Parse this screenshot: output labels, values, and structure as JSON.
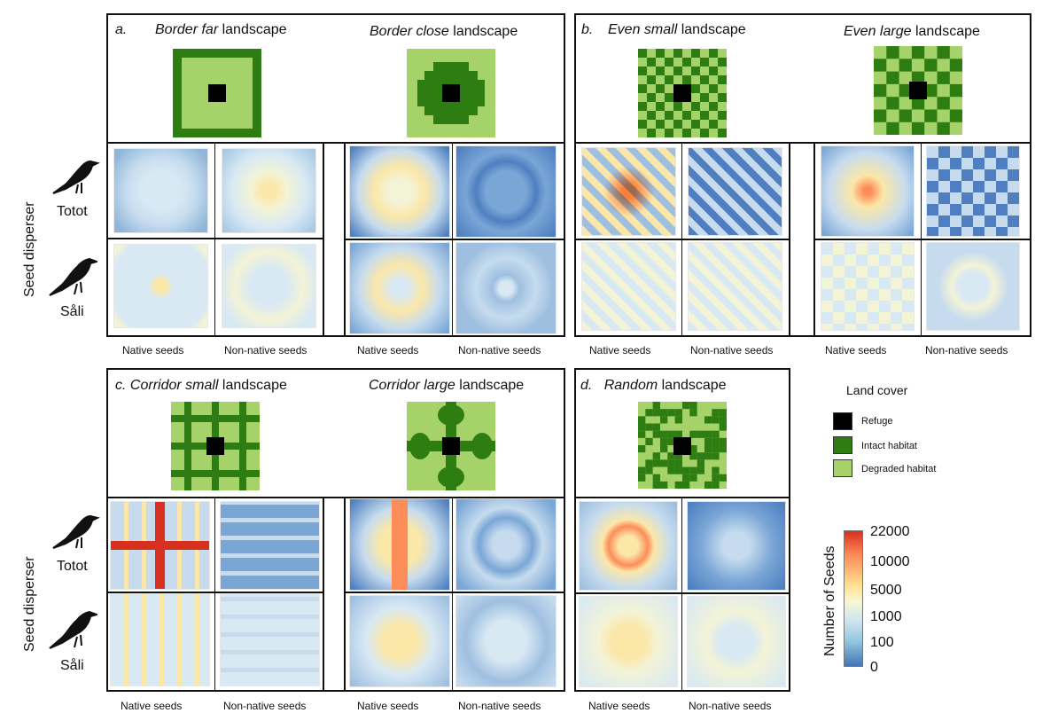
{
  "panel_a": {
    "letter": "a.",
    "left_title_italic": "Border far",
    "left_title_rest": " landscape",
    "right_title_italic": "Border close",
    "right_title_rest": " landscape"
  },
  "panel_b": {
    "letter": "b.",
    "left_title_italic": "Even small",
    "left_title_rest": " landscape",
    "right_title_italic": "Even large",
    "right_title_rest": " landscape"
  },
  "panel_c": {
    "letter": "c.",
    "left_title_italic": "Corridor small",
    "left_title_rest": " landscape",
    "right_title_italic": "Corridor large",
    "right_title_rest": " landscape"
  },
  "panel_d": {
    "letter": "d.",
    "title_italic": "Random",
    "title_rest": " landscape"
  },
  "row_labels": {
    "side": "Seed disperser",
    "top": "Totot",
    "bottom": "Såli"
  },
  "col_labels": {
    "native": "Native seeds",
    "nonnative": "Non-native seeds"
  },
  "legend": {
    "title": "Land cover",
    "items": [
      {
        "label": "Refuge",
        "color": "#000000"
      },
      {
        "label": "Intact habitat",
        "color": "#2e7d12"
      },
      {
        "label": "Degraded habitat",
        "color": "#a6d26a"
      }
    ]
  },
  "colorbar": {
    "title": "Number of Seeds",
    "ticks": [
      "22000",
      "10000",
      "5000",
      "1000",
      "100",
      "0"
    ],
    "colors": [
      "#d7301f",
      "#fc8d59",
      "#fee090",
      "#f7f7d2",
      "#92c5de",
      "#4575b4"
    ]
  }
}
